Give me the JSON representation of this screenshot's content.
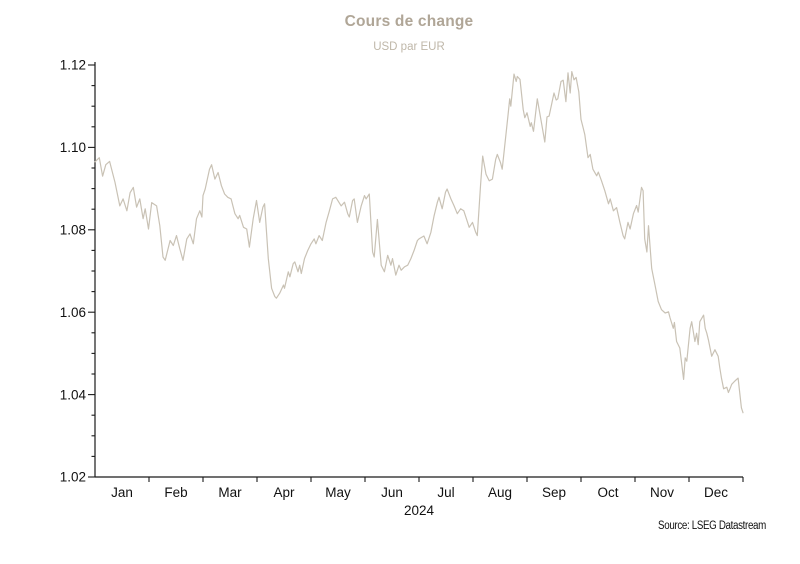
{
  "header": {
    "title": "Cours de change",
    "subtitle": "USD par EUR"
  },
  "footer": {
    "source": "Source: LSEG Datastream"
  },
  "colors": {
    "title_text": "#b0a697",
    "subtitle_text": "#bfb7a9",
    "series_line": "#c9c2b5",
    "axis": "#1a1a1a",
    "tick_label": "#111111",
    "background": "#ffffff"
  },
  "chart_data": {
    "type": "line",
    "title": "Cours de change",
    "subtitle": "USD par EUR",
    "xlabel": "2024",
    "ylabel": "",
    "x_unit": "month position (0 = 1 Jan 2024, 12 = 31 Dec 2024)",
    "x_tick_labels": [
      "Jan",
      "Feb",
      "Mar",
      "Apr",
      "May",
      "Jun",
      "Jul",
      "Aug",
      "Sep",
      "Oct",
      "Nov",
      "Dec"
    ],
    "xlim": [
      0,
      12
    ],
    "ylim": [
      1.02,
      1.12
    ],
    "y_major_step": 0.02,
    "y_minor_step": 0.005,
    "grid": false,
    "legend_position": "none",
    "source": "Source: LSEG Datastream",
    "series": [
      {
        "name": "USD par EUR",
        "x": [
          0.0,
          0.08,
          0.14,
          0.2,
          0.27,
          0.37,
          0.46,
          0.52,
          0.59,
          0.65,
          0.71,
          0.77,
          0.83,
          0.89,
          0.93,
          0.99,
          1.05,
          1.14,
          1.2,
          1.26,
          1.3,
          1.39,
          1.45,
          1.51,
          1.57,
          1.63,
          1.7,
          1.76,
          1.82,
          1.88,
          1.94,
          1.98,
          2.0,
          2.04,
          2.12,
          2.16,
          2.22,
          2.28,
          2.34,
          2.4,
          2.46,
          2.52,
          2.59,
          2.65,
          2.68,
          2.75,
          2.81,
          2.86,
          2.93,
          2.99,
          3.05,
          3.11,
          3.14,
          3.21,
          3.27,
          3.33,
          3.36,
          3.42,
          3.49,
          3.51,
          3.58,
          3.61,
          3.67,
          3.7,
          3.76,
          3.79,
          3.82,
          3.88,
          3.94,
          4.0,
          4.06,
          4.09,
          4.15,
          4.21,
          4.28,
          4.34,
          4.4,
          4.46,
          4.56,
          4.62,
          4.68,
          4.71,
          4.77,
          4.8,
          4.86,
          4.93,
          4.99,
          5.02,
          5.08,
          5.14,
          5.17,
          5.23,
          5.3,
          5.36,
          5.42,
          5.48,
          5.51,
          5.57,
          5.63,
          5.67,
          5.73,
          5.79,
          5.85,
          5.91,
          5.97,
          6.0,
          6.09,
          6.15,
          6.22,
          6.28,
          6.34,
          6.37,
          6.43,
          6.49,
          6.52,
          6.59,
          6.65,
          6.71,
          6.77,
          6.83,
          6.93,
          6.99,
          7.05,
          7.08,
          7.14,
          7.18,
          7.24,
          7.3,
          7.36,
          7.42,
          7.45,
          7.51,
          7.54,
          7.6,
          7.65,
          7.68,
          7.7,
          7.76,
          7.8,
          7.82,
          7.87,
          7.93,
          7.96,
          8.0,
          8.06,
          8.08,
          8.12,
          8.19,
          8.24,
          8.28,
          8.33,
          8.37,
          8.41,
          8.5,
          8.54,
          8.57,
          8.63,
          8.67,
          8.72,
          8.76,
          8.8,
          8.83,
          8.87,
          8.91,
          8.96,
          9.0,
          9.04,
          9.07,
          9.13,
          9.17,
          9.22,
          9.29,
          9.32,
          9.38,
          9.44,
          9.51,
          9.54,
          9.6,
          9.66,
          9.72,
          9.78,
          9.81,
          9.87,
          9.91,
          9.97,
          10.03,
          10.06,
          10.12,
          10.15,
          10.18,
          10.22,
          10.25,
          10.31,
          10.37,
          10.43,
          10.49,
          10.56,
          10.62,
          10.65,
          10.71,
          10.73,
          10.77,
          10.83,
          10.9,
          10.93,
          10.96,
          11.02,
          11.05,
          11.11,
          11.14,
          11.17,
          11.2,
          11.27,
          11.3,
          11.33,
          11.36,
          11.42,
          11.48,
          11.54,
          11.57,
          11.6,
          11.64,
          11.7,
          11.73,
          11.76,
          11.79,
          11.85,
          11.91,
          11.97,
          12.0
        ],
        "y": [
          1.0965,
          1.0975,
          1.093,
          1.0958,
          1.0966,
          1.0915,
          1.0858,
          1.0875,
          1.0846,
          1.089,
          1.0903,
          1.0855,
          1.0875,
          1.0827,
          1.0851,
          1.0802,
          1.0866,
          1.0858,
          1.081,
          1.0734,
          1.0726,
          1.0774,
          1.0762,
          1.0786,
          1.0754,
          1.0726,
          1.0778,
          1.079,
          1.0766,
          1.0827,
          1.0846,
          1.0831,
          1.0883,
          1.0899,
          1.0947,
          1.0958,
          1.0923,
          1.0939,
          1.0907,
          1.0887,
          1.0879,
          1.0875,
          1.0839,
          1.0827,
          1.0835,
          1.0806,
          1.0802,
          1.0758,
          1.0827,
          1.0871,
          1.0818,
          1.0855,
          1.0863,
          1.073,
          1.0658,
          1.0638,
          1.0634,
          1.0646,
          1.0666,
          1.0658,
          1.0698,
          1.0686,
          1.0718,
          1.0722,
          1.0698,
          1.0714,
          1.0694,
          1.073,
          1.075,
          1.0766,
          1.0778,
          1.0766,
          1.0786,
          1.0774,
          1.0818,
          1.0846,
          1.0875,
          1.0879,
          1.0858,
          1.0867,
          1.0839,
          1.0831,
          1.0871,
          1.0875,
          1.0818,
          1.0858,
          1.0883,
          1.0875,
          1.0887,
          1.0746,
          1.0734,
          1.0825,
          1.0714,
          1.0698,
          1.0738,
          1.0714,
          1.073,
          1.069,
          1.0714,
          1.0702,
          1.071,
          1.0714,
          1.073,
          1.075,
          1.0774,
          1.0778,
          1.0785,
          1.0766,
          1.0794,
          1.0834,
          1.0867,
          1.0879,
          1.0851,
          1.0891,
          1.0899,
          1.0875,
          1.0858,
          1.0839,
          1.0851,
          1.0846,
          1.0806,
          1.0818,
          1.0794,
          1.0786,
          1.091,
          1.0979,
          1.0935,
          1.0919,
          1.0923,
          1.0971,
          1.0983,
          1.0963,
          1.0947,
          1.1019,
          1.108,
          1.1118,
          1.11,
          1.1178,
          1.116,
          1.1172,
          1.1165,
          1.1092,
          1.1072,
          1.1084,
          1.1051,
          1.106,
          1.1039,
          1.1118,
          1.108,
          1.1051,
          1.1013,
          1.1074,
          1.1076,
          1.1132,
          1.1115,
          1.1118,
          1.116,
          1.1163,
          1.1111,
          1.1181,
          1.1132,
          1.1184,
          1.1164,
          1.117,
          1.1135,
          1.1068,
          1.1047,
          1.1031,
          1.0975,
          1.0983,
          1.0947,
          1.0931,
          1.094,
          1.0919,
          1.0895,
          1.0863,
          1.0875,
          1.0846,
          1.0854,
          1.0818,
          1.0786,
          1.0778,
          1.0818,
          1.0802,
          1.0839,
          1.0859,
          1.0843,
          1.0903,
          1.0895,
          1.0778,
          1.0746,
          1.081,
          1.0706,
          1.0666,
          1.0626,
          1.0606,
          1.0598,
          1.0601,
          1.0586,
          1.0561,
          1.0575,
          1.0529,
          1.0513,
          1.0437,
          1.0489,
          1.0481,
          1.0561,
          1.0577,
          1.0529,
          1.0549,
          1.0521,
          1.0577,
          1.0593,
          1.0561,
          1.0549,
          1.0533,
          1.0493,
          1.0509,
          1.0493,
          1.0465,
          1.0441,
          1.0414,
          1.0418,
          1.0405,
          1.0414,
          1.0425,
          1.0433,
          1.044,
          1.0368,
          1.0356
        ]
      }
    ]
  }
}
